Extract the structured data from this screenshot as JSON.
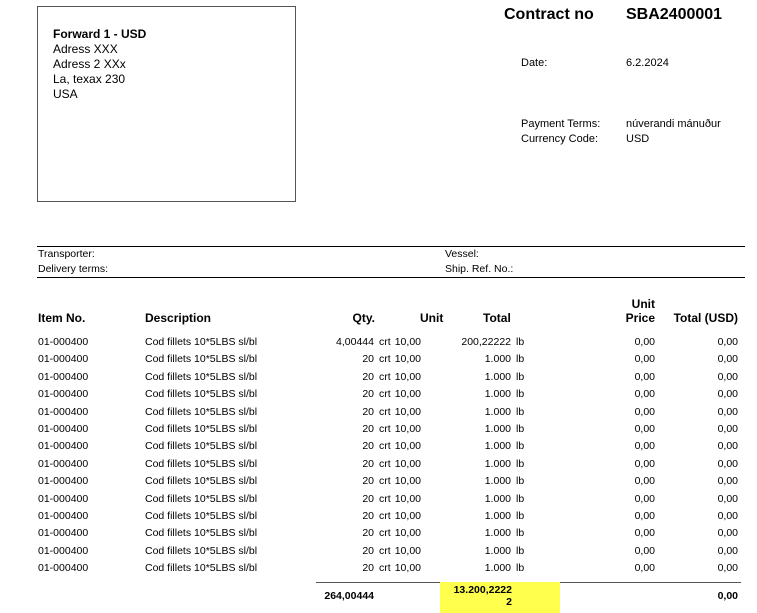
{
  "address": {
    "name": "Forward 1 - USD",
    "line1": "Adress XXX",
    "line2": "Adress 2 XXx",
    "line3": "La, texax 230",
    "country": "USA"
  },
  "contract": {
    "label": "Contract no",
    "number": "SBA2400001"
  },
  "meta": {
    "date_label": "Date:",
    "date": "6.2.2024",
    "payment_terms_label": "Payment Terms:",
    "payment_terms": "núverandi mánuður",
    "currency_label": "Currency Code:",
    "currency": "USD"
  },
  "shipping": {
    "transporter_label": "Transporter:",
    "delivery_terms_label": "Delivery terms:",
    "vessel_label": "Vessel:",
    "ship_ref_label": "Ship. Ref. No.:"
  },
  "table": {
    "headers": {
      "item": "Item No.",
      "description": "Description",
      "qty": "Qty.",
      "unit": "Unit",
      "total": "Total",
      "unit_price_1": "Unit",
      "unit_price_2": "Price",
      "total_usd": "Total (USD)"
    },
    "rows": [
      {
        "item": "01-000400",
        "description": "Cod fillets 10*5LBS sl/bl",
        "qty": "4,00444",
        "qty_unit": "crt",
        "unit": "10,00",
        "total": "200,22222",
        "total_unit": "lb",
        "unit_price": "0,00",
        "total_usd": "0,00"
      },
      {
        "item": "01-000400",
        "description": "Cod fillets 10*5LBS sl/bl",
        "qty": "20",
        "qty_unit": "crt",
        "unit": "10,00",
        "total": "1.000",
        "total_unit": "lb",
        "unit_price": "0,00",
        "total_usd": "0,00"
      },
      {
        "item": "01-000400",
        "description": "Cod fillets 10*5LBS sl/bl",
        "qty": "20",
        "qty_unit": "crt",
        "unit": "10,00",
        "total": "1.000",
        "total_unit": "lb",
        "unit_price": "0,00",
        "total_usd": "0,00"
      },
      {
        "item": "01-000400",
        "description": "Cod fillets 10*5LBS sl/bl",
        "qty": "20",
        "qty_unit": "crt",
        "unit": "10,00",
        "total": "1.000",
        "total_unit": "lb",
        "unit_price": "0,00",
        "total_usd": "0,00"
      },
      {
        "item": "01-000400",
        "description": "Cod fillets 10*5LBS sl/bl",
        "qty": "20",
        "qty_unit": "crt",
        "unit": "10,00",
        "total": "1.000",
        "total_unit": "lb",
        "unit_price": "0,00",
        "total_usd": "0,00"
      },
      {
        "item": "01-000400",
        "description": "Cod fillets 10*5LBS sl/bl",
        "qty": "20",
        "qty_unit": "crt",
        "unit": "10,00",
        "total": "1.000",
        "total_unit": "lb",
        "unit_price": "0,00",
        "total_usd": "0,00"
      },
      {
        "item": "01-000400",
        "description": "Cod fillets 10*5LBS sl/bl",
        "qty": "20",
        "qty_unit": "crt",
        "unit": "10,00",
        "total": "1.000",
        "total_unit": "lb",
        "unit_price": "0,00",
        "total_usd": "0,00"
      },
      {
        "item": "01-000400",
        "description": "Cod fillets 10*5LBS sl/bl",
        "qty": "20",
        "qty_unit": "crt",
        "unit": "10,00",
        "total": "1.000",
        "total_unit": "lb",
        "unit_price": "0,00",
        "total_usd": "0,00"
      },
      {
        "item": "01-000400",
        "description": "Cod fillets 10*5LBS sl/bl",
        "qty": "20",
        "qty_unit": "crt",
        "unit": "10,00",
        "total": "1.000",
        "total_unit": "lb",
        "unit_price": "0,00",
        "total_usd": "0,00"
      },
      {
        "item": "01-000400",
        "description": "Cod fillets 10*5LBS sl/bl",
        "qty": "20",
        "qty_unit": "crt",
        "unit": "10,00",
        "total": "1.000",
        "total_unit": "lb",
        "unit_price": "0,00",
        "total_usd": "0,00"
      },
      {
        "item": "01-000400",
        "description": "Cod fillets 10*5LBS sl/bl",
        "qty": "20",
        "qty_unit": "crt",
        "unit": "10,00",
        "total": "1.000",
        "total_unit": "lb",
        "unit_price": "0,00",
        "total_usd": "0,00"
      },
      {
        "item": "01-000400",
        "description": "Cod fillets 10*5LBS sl/bl",
        "qty": "20",
        "qty_unit": "crt",
        "unit": "10,00",
        "total": "1.000",
        "total_unit": "lb",
        "unit_price": "0,00",
        "total_usd": "0,00"
      },
      {
        "item": "01-000400",
        "description": "Cod fillets 10*5LBS sl/bl",
        "qty": "20",
        "qty_unit": "crt",
        "unit": "10,00",
        "total": "1.000",
        "total_unit": "lb",
        "unit_price": "0,00",
        "total_usd": "0,00"
      },
      {
        "item": "01-000400",
        "description": "Cod fillets 10*5LBS sl/bl",
        "qty": "20",
        "qty_unit": "crt",
        "unit": "10,00",
        "total": "1.000",
        "total_unit": "lb",
        "unit_price": "0,00",
        "total_usd": "0,00"
      }
    ],
    "totals": {
      "qty": "264,00444",
      "total": "13.200,22222",
      "total_usd": "0,00"
    }
  },
  "colors": {
    "highlight": "#ffff4d"
  }
}
